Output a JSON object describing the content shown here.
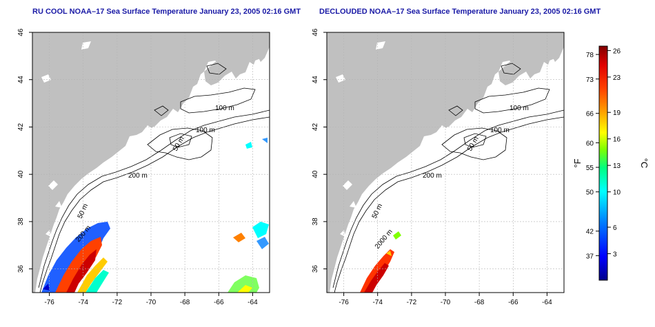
{
  "panels": [
    {
      "title": "RU COOL NOAA–17 Sea Surface Temperature January 23, 2005 02:16 GMT",
      "x_ticks": [
        "-76",
        "-74",
        "-72",
        "-70",
        "-68",
        "-66",
        "-64"
      ],
      "y_ticks": [
        "46",
        "44",
        "42",
        "40",
        "38",
        "36"
      ],
      "contour_labels": [
        "100 m",
        "100 m",
        "50 m",
        "200 m",
        "50 m",
        "200 m"
      ]
    },
    {
      "title": "DECLOUDED NOAA–17 Sea Surface Temperature January 23, 2005 02:16 GMT",
      "x_ticks": [
        "-76",
        "-74",
        "-72",
        "-70",
        "-68",
        "-66",
        "-64"
      ],
      "y_ticks": [
        "46",
        "44",
        "42",
        "40",
        "38",
        "36"
      ],
      "contour_labels": [
        "100 m",
        "100 m",
        "50 m",
        "200 m",
        "50 m",
        "2000 m"
      ]
    }
  ],
  "colorbar": {
    "f_label": "°F",
    "c_label": "°C",
    "f_ticks": [
      "78",
      "73",
      "66",
      "60",
      "55",
      "50",
      "42",
      "37"
    ],
    "c_ticks": [
      "26",
      "23",
      "19",
      "16",
      "13",
      "10",
      "6",
      "3"
    ],
    "f_values": [
      78,
      73,
      66,
      60,
      55,
      50,
      42,
      37
    ],
    "c_values": [
      26,
      23,
      19,
      16,
      13,
      10,
      6,
      3
    ],
    "range_c": [
      0,
      26.5
    ]
  },
  "map": {
    "lon_range": [
      -77,
      -63
    ],
    "lat_range": [
      35,
      46
    ],
    "grid": true,
    "colors": {
      "land": "#c0c0c0",
      "ocean": "#ffffff",
      "contour": "#000000",
      "grid": "#b4b4b4",
      "title": "#1a1aa6"
    },
    "colorscale": [
      "#00008b",
      "#0000ff",
      "#0080ff",
      "#00ffff",
      "#00ff80",
      "#80ff00",
      "#ffff00",
      "#ffa000",
      "#ff4000",
      "#e00000",
      "#800000"
    ]
  }
}
